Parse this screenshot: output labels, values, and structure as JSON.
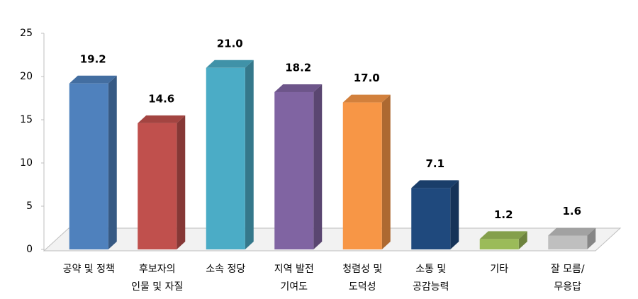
{
  "chart_data": {
    "type": "bar3d",
    "categories": [
      [
        "공약 및 정책"
      ],
      [
        "후보자의",
        "인물 및 자질"
      ],
      [
        "소속 정당"
      ],
      [
        "지역 발전",
        "기여도"
      ],
      [
        "청렴성 및",
        "도덕성"
      ],
      [
        "소통 및",
        "공감능력"
      ],
      [
        "기타"
      ],
      [
        "잘 모름/",
        "무응답"
      ]
    ],
    "values": [
      19.2,
      14.6,
      21.0,
      18.2,
      17.0,
      7.1,
      1.2,
      1.6
    ],
    "value_labels": [
      "19.2",
      "14.6",
      "21.0",
      "18.2",
      "17.0",
      "7.1",
      "1.2",
      "1.6"
    ],
    "colors": [
      "#4f81bd",
      "#c0504d",
      "#4bacc6",
      "#8064a2",
      "#f79646",
      "#1f497d",
      "#9bbb59",
      "#bfbfbf"
    ],
    "ylim": [
      0,
      25
    ],
    "yticks": [
      0,
      5,
      10,
      15,
      20,
      25
    ]
  }
}
